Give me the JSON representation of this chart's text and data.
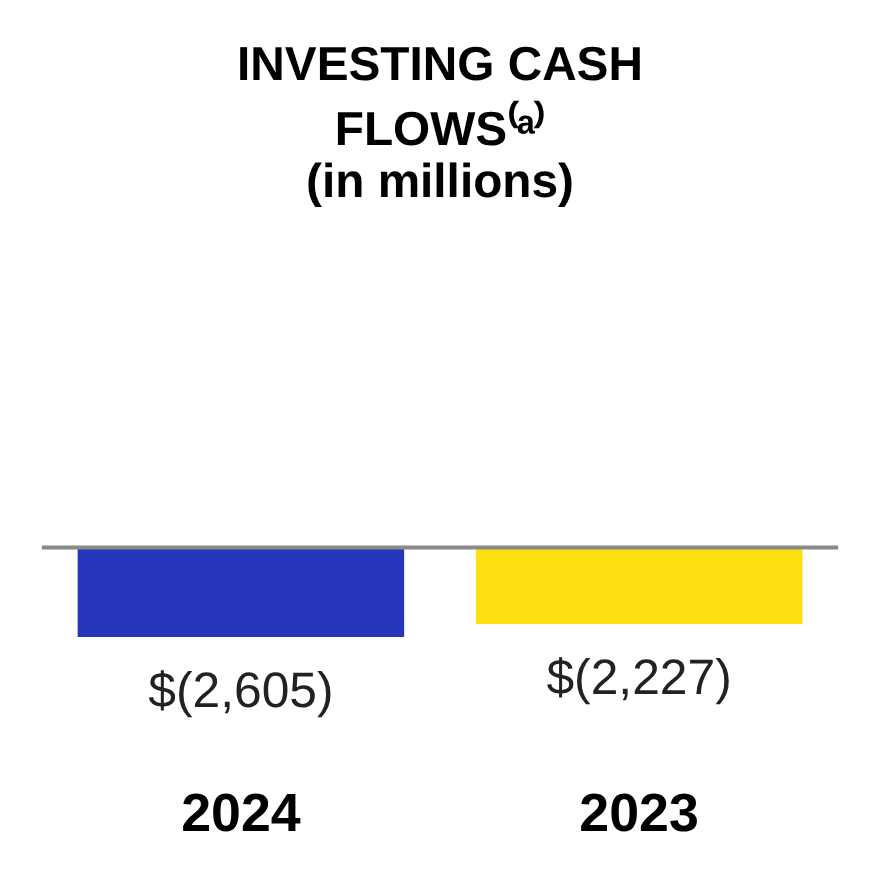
{
  "chart_data": {
    "type": "bar",
    "title": "INVESTING CASH FLOWS⁽ᵃ⁾",
    "subtitle": "(in millions)",
    "categories": [
      "2024",
      "2023"
    ],
    "values": [
      -2605,
      -2227
    ],
    "colors": [
      "#2536bd",
      "#fedf12"
    ],
    "value_labels": [
      "$(2,605)",
      "$(2,227)"
    ]
  }
}
